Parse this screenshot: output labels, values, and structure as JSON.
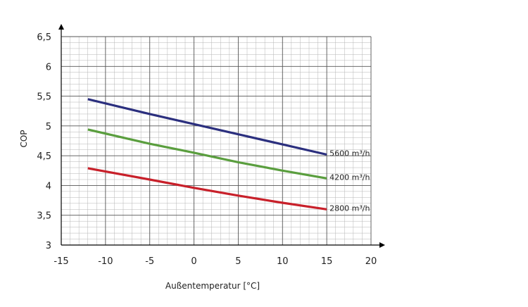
{
  "chart_data": {
    "type": "line",
    "title": "",
    "xlabel": "Außentemperatur [°C]",
    "ylabel": "COP",
    "xlim": [
      -15,
      20
    ],
    "ylim": [
      3,
      6.5
    ],
    "xticks": [
      -15,
      -10,
      -5,
      0,
      5,
      10,
      15,
      20
    ],
    "xtick_labels": [
      "-15",
      "-10",
      "-5",
      "0",
      "5",
      "10",
      "15",
      "20"
    ],
    "yticks": [
      3,
      3.5,
      4,
      4.5,
      5,
      5.5,
      6,
      6.5
    ],
    "ytick_labels": [
      "3",
      "3,5",
      "4",
      "4,5",
      "5",
      "5,5",
      "6",
      "6,5"
    ],
    "grid": true,
    "legend": "inline labels at line ends",
    "series": [
      {
        "name": "5600 m³/h",
        "color": "#2b2f7e",
        "x": [
          -12,
          -5,
          0,
          5,
          10,
          15
        ],
        "values": [
          5.45,
          5.2,
          5.03,
          4.86,
          4.69,
          4.52
        ]
      },
      {
        "name": "4200 m³/h",
        "color": "#5a9e3e",
        "x": [
          -12,
          -5,
          0,
          5,
          10,
          15
        ],
        "values": [
          4.94,
          4.7,
          4.55,
          4.39,
          4.25,
          4.12
        ]
      },
      {
        "name": "2800 m³/h",
        "color": "#c8202a",
        "x": [
          -12,
          -5,
          0,
          5,
          10,
          15
        ],
        "values": [
          4.29,
          4.1,
          3.96,
          3.83,
          3.71,
          3.6
        ]
      }
    ]
  }
}
